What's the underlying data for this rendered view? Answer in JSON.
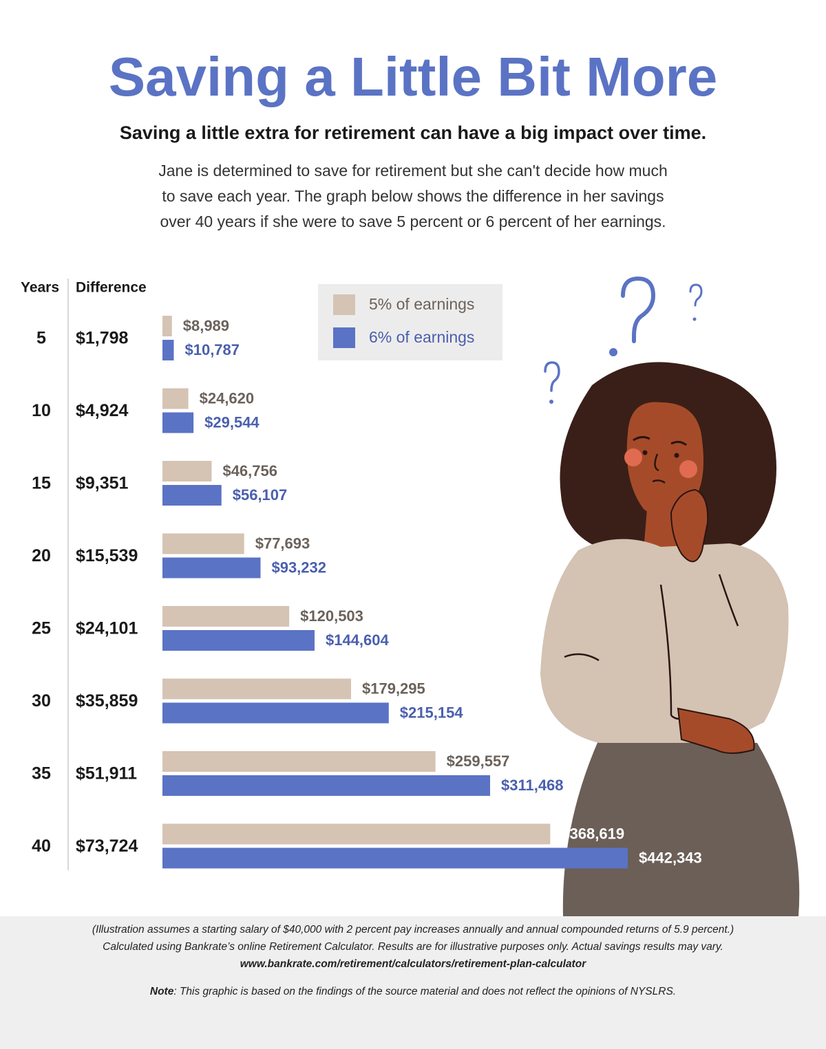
{
  "chart_data": {
    "type": "bar",
    "orientation": "horizontal",
    "title": "Saving a Little Bit More",
    "subtitle": "Saving a little extra for retirement can have a big impact over time.",
    "description": [
      "Jane is determined to save for retirement but she can't decide how much",
      "to save each year. The graph below shows the difference in her savings",
      "over 40 years if she were to save 5 percent or 6 percent of her earnings."
    ],
    "category_header": "Years",
    "difference_header": "Difference",
    "categories": [
      "5",
      "10",
      "15",
      "20",
      "25",
      "30",
      "35",
      "40"
    ],
    "differences": [
      "$1,798",
      "$4,924",
      "$9,351",
      "$15,539",
      "$24,101",
      "$35,859",
      "$51,911",
      "$73,724"
    ],
    "series": [
      {
        "name": "5% of earnings",
        "color": "#d5c3b3",
        "values": [
          8989,
          24620,
          46756,
          77693,
          120503,
          179295,
          259557,
          368619
        ],
        "value_labels": [
          "$8,989",
          "$24,620",
          "$46,756",
          "$77,693",
          "$120,503",
          "$179,295",
          "$259,557",
          "$368,619"
        ]
      },
      {
        "name": "6% of earnings",
        "color": "#5a73c5",
        "values": [
          10787,
          29544,
          56107,
          93232,
          144604,
          215154,
          311468,
          442343
        ],
        "value_labels": [
          "$10,787",
          "$29,544",
          "$56,107",
          "$93,232",
          "$144,604",
          "$215,154",
          "$311,468",
          "$442,343"
        ]
      }
    ],
    "footnotes": [
      "(Illustration assumes a starting salary of $40,000 with 2 percent pay increases annually and annual compounded returns of 5.9 percent.)",
      "Calculated using Bankrate’s online Retirement Calculator. Results are for illustrative purposes only. Actual savings results may vary."
    ],
    "source_url": "www.bankrate.com/retirement/calculators/retirement-plan-calculator",
    "note_label": "Note",
    "note_text": ": This graphic is based on the findings of the source material and does not reflect the opinions of NYSLRS."
  }
}
